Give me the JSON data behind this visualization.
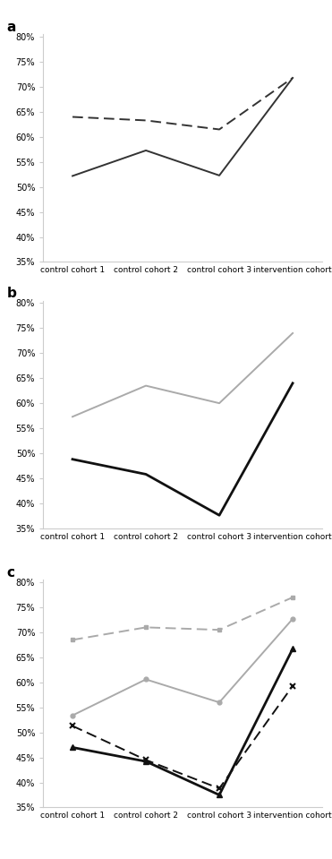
{
  "x_labels": [
    "control cohort 1",
    "control cohort 2",
    "control cohort 3",
    "intervention cohort"
  ],
  "panel_a": {
    "female": [
      0.64,
      0.633,
      0.615,
      0.718
    ],
    "male": [
      0.522,
      0.573,
      0.523,
      0.718
    ]
  },
  "panel_b": {
    "majority": [
      0.573,
      0.635,
      0.6,
      0.74
    ],
    "ethnic_minority": [
      0.488,
      0.458,
      0.376,
      0.64
    ]
  },
  "panel_c": {
    "majority_male": [
      0.534,
      0.606,
      0.56,
      0.727
    ],
    "majority_female": [
      0.685,
      0.71,
      0.705,
      0.77
    ],
    "ethnic_minority_male": [
      0.47,
      0.442,
      0.375,
      0.667
    ],
    "ethnic_minority_female": [
      0.513,
      0.445,
      0.388,
      0.593
    ]
  },
  "ylim": [
    0.35,
    0.805
  ],
  "yticks": [
    0.35,
    0.4,
    0.45,
    0.5,
    0.55,
    0.6,
    0.65,
    0.7,
    0.75,
    0.8
  ],
  "color_gray": "#aaaaaa",
  "color_dark": "#333333",
  "color_black": "#111111"
}
